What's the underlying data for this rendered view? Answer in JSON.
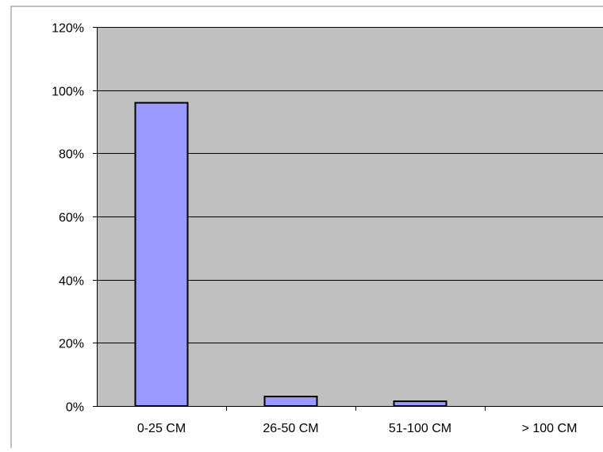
{
  "chart_data": {
    "type": "bar",
    "title": "",
    "xlabel": "",
    "ylabel": "",
    "categories": [
      "0-25 CM",
      "26-50 CM",
      "51-100 CM",
      "> 100 CM"
    ],
    "series": [
      {
        "values": [
          96,
          3,
          1.5,
          0
        ]
      }
    ],
    "ylim": [
      0,
      120
    ],
    "y_ticks": [
      0,
      20,
      40,
      60,
      80,
      100,
      120
    ],
    "y_tick_labels": [
      "0%",
      "20%",
      "40%",
      "60%",
      "80%",
      "100%",
      "120%"
    ],
    "grid": true,
    "legend": "none",
    "colors": {
      "bar_fill": "#9999ff",
      "bar_stroke": "#000000",
      "plot_background": "#c0c0c0",
      "gridline": "#000000",
      "frame": "#808080"
    }
  }
}
